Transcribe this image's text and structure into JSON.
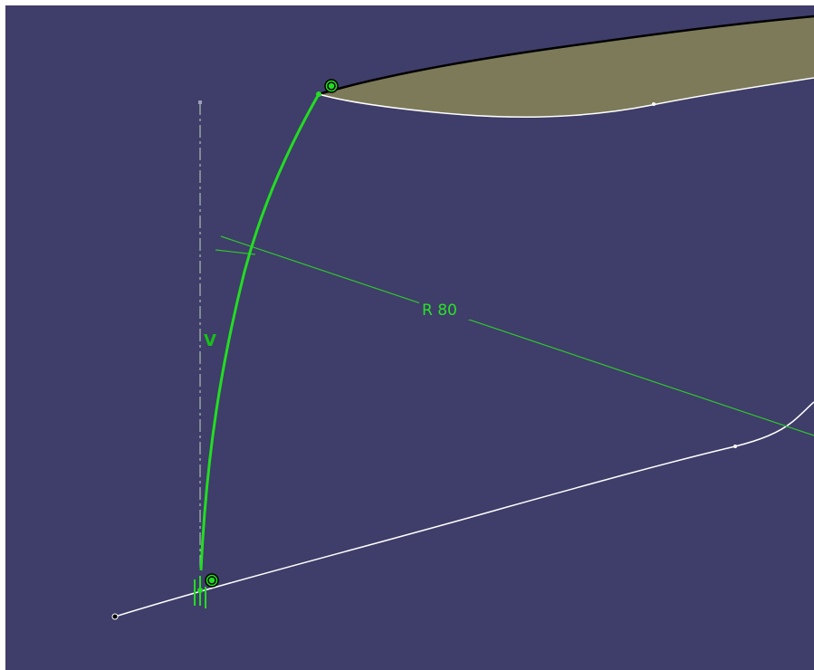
{
  "viewport": {
    "background_color": "#3f3d69",
    "frame_color": "#ffffff"
  },
  "colors": {
    "active_geometry": "#22dd22",
    "dimension_line": "#2ec82e",
    "projected_curve": "#ffffff",
    "surface_fill": "#7c7a58",
    "surface_edge": "#000000",
    "axis_line": "#c2d6c2"
  },
  "annotations": {
    "radius_dimension": "R 80",
    "vertical_constraint": "V"
  },
  "icons": {
    "coincidence_top": "coincidence-constraint-icon",
    "coincidence_bottom": "coincidence-constraint-icon",
    "parallel_constraint": "parallel-constraint-icon"
  }
}
